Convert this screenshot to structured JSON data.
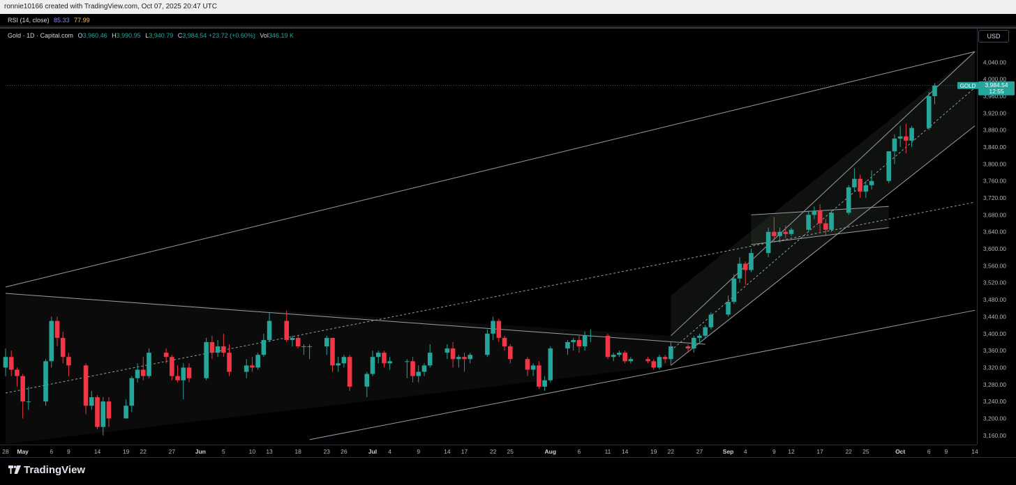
{
  "header": {
    "attribution": "ronnie10166 created with TradingView.com, Oct 07, 2025 20:47 UTC"
  },
  "rsi": {
    "label": "RSI (14, close)",
    "value1": "85.33",
    "value2": "77.99"
  },
  "info": {
    "symbol": "Gold · 1D · Capital.com",
    "open_label": "O",
    "open": "3,960.46",
    "high_label": "H",
    "high": "3,990.95",
    "low_label": "L",
    "low": "3,940.79",
    "close_label": "C",
    "close": "3,984.54",
    "change": "+23.72 (+0.60%)",
    "vol_label": "Vol",
    "vol": "346.19 K"
  },
  "currency_button": "USD",
  "price_tag": {
    "name": "GOLD",
    "price": "3,984.54",
    "countdown": "12:55"
  },
  "footer": {
    "brand": "TradingView"
  },
  "colors": {
    "up": "#26a69a",
    "down": "#f23645",
    "line": "#b2b5be",
    "bg": "#000000"
  },
  "chart_data": {
    "type": "candlestick",
    "x_label_dates": [
      "2025-04-28",
      "2025-05-01",
      "2025-05-06",
      "2025-05-09",
      "2025-05-14",
      "2025-05-19",
      "2025-05-22",
      "2025-05-27",
      "2025-06-01",
      "2025-06-05",
      "2025-06-10",
      "2025-06-13",
      "2025-06-18",
      "2025-06-23",
      "2025-06-26",
      "2025-07-01",
      "2025-07-04",
      "2025-07-09",
      "2025-07-14",
      "2025-07-17",
      "2025-07-22",
      "2025-07-25",
      "2025-08-01",
      "2025-08-06",
      "2025-08-11",
      "2025-08-14",
      "2025-08-19",
      "2025-08-22",
      "2025-08-27",
      "2025-09-01",
      "2025-09-04",
      "2025-09-09",
      "2025-09-12",
      "2025-09-17",
      "2025-09-22",
      "2025-09-25",
      "2025-10-01",
      "2025-10-06",
      "2025-10-09",
      "2025-10-14"
    ],
    "x_labels": [
      "28",
      "May",
      "6",
      "9",
      "14",
      "19",
      "22",
      "27",
      "Jun",
      "5",
      "10",
      "13",
      "18",
      "23",
      "26",
      "Jul",
      "4",
      "9",
      "14",
      "17",
      "22",
      "25",
      "Aug",
      "6",
      "11",
      "14",
      "19",
      "22",
      "27",
      "Sep",
      "4",
      "9",
      "12",
      "17",
      "22",
      "25",
      "Oct",
      "6",
      "9",
      "14"
    ],
    "y_ticks": [
      3160,
      3200,
      3240,
      3280,
      3320,
      3360,
      3400,
      3440,
      3480,
      3520,
      3560,
      3600,
      3640,
      3680,
      3720,
      3760,
      3800,
      3840,
      3880,
      3920,
      3960,
      4000,
      4040
    ],
    "y_tick_labels": [
      "3,160.00",
      "3,200.00",
      "3,240.00",
      "3,280.00",
      "3,320.00",
      "3,360.00",
      "3,400.00",
      "3,440.00",
      "3,480.00",
      "3,520.00",
      "3,560.00",
      "3,600.00",
      "3,640.00",
      "3,680.00",
      "3,720.00",
      "3,760.00",
      "3,800.00",
      "3,840.00",
      "3,880.00",
      "3,920.00",
      "3,960.00",
      "4,000.00",
      "4,040.00"
    ],
    "ylim": [
      3140,
      4075
    ],
    "xlim": [
      "2025-04-28",
      "2025-10-14"
    ],
    "candles": [
      {
        "d": "2025-04-28",
        "o": 3320,
        "h": 3365,
        "l": 3300,
        "c": 3345
      },
      {
        "d": "2025-04-29",
        "o": 3345,
        "h": 3360,
        "l": 3300,
        "c": 3315
      },
      {
        "d": "2025-04-30",
        "o": 3315,
        "h": 3320,
        "l": 3275,
        "c": 3300
      },
      {
        "d": "2025-05-01",
        "o": 3300,
        "h": 3305,
        "l": 3200,
        "c": 3240
      },
      {
        "d": "2025-05-02",
        "o": 3240,
        "h": 3275,
        "l": 3220,
        "c": 3240
      },
      {
        "d": "2025-05-05",
        "o": 3240,
        "h": 3340,
        "l": 3230,
        "c": 3335
      },
      {
        "d": "2025-05-06",
        "o": 3335,
        "h": 3440,
        "l": 3320,
        "c": 3430
      },
      {
        "d": "2025-05-07",
        "o": 3430,
        "h": 3440,
        "l": 3370,
        "c": 3390
      },
      {
        "d": "2025-05-08",
        "o": 3390,
        "h": 3405,
        "l": 3330,
        "c": 3345
      },
      {
        "d": "2025-05-09",
        "o": 3345,
        "h": 3355,
        "l": 3300,
        "c": 3325
      },
      {
        "d": "2025-05-12",
        "o": 3325,
        "h": 3330,
        "l": 3210,
        "c": 3230
      },
      {
        "d": "2025-05-13",
        "o": 3230,
        "h": 3265,
        "l": 3220,
        "c": 3250
      },
      {
        "d": "2025-05-14",
        "o": 3250,
        "h": 3255,
        "l": 3175,
        "c": 3180
      },
      {
        "d": "2025-05-15",
        "o": 3180,
        "h": 3250,
        "l": 3160,
        "c": 3240
      },
      {
        "d": "2025-05-16",
        "o": 3240,
        "h": 3250,
        "l": 3180,
        "c": 3200
      },
      {
        "d": "2025-05-19",
        "o": 3200,
        "h": 3245,
        "l": 3200,
        "c": 3230
      },
      {
        "d": "2025-05-20",
        "o": 3230,
        "h": 3300,
        "l": 3215,
        "c": 3295
      },
      {
        "d": "2025-05-21",
        "o": 3295,
        "h": 3330,
        "l": 3285,
        "c": 3315
      },
      {
        "d": "2025-05-22",
        "o": 3315,
        "h": 3345,
        "l": 3290,
        "c": 3300
      },
      {
        "d": "2025-05-23",
        "o": 3300,
        "h": 3365,
        "l": 3295,
        "c": 3355
      },
      {
        "d": "2025-05-26",
        "o": 3355,
        "h": 3365,
        "l": 3330,
        "c": 3345
      },
      {
        "d": "2025-05-27",
        "o": 3345,
        "h": 3350,
        "l": 3290,
        "c": 3300
      },
      {
        "d": "2025-05-28",
        "o": 3300,
        "h": 3325,
        "l": 3285,
        "c": 3290
      },
      {
        "d": "2025-05-29",
        "o": 3290,
        "h": 3330,
        "l": 3245,
        "c": 3320
      },
      {
        "d": "2025-05-30",
        "o": 3320,
        "h": 3330,
        "l": 3285,
        "c": 3295
      },
      {
        "d": "2025-06-02",
        "o": 3295,
        "h": 3390,
        "l": 3290,
        "c": 3380
      },
      {
        "d": "2025-06-03",
        "o": 3380,
        "h": 3395,
        "l": 3340,
        "c": 3355
      },
      {
        "d": "2025-06-04",
        "o": 3355,
        "h": 3385,
        "l": 3345,
        "c": 3370
      },
      {
        "d": "2025-06-05",
        "o": 3370,
        "h": 3400,
        "l": 3345,
        "c": 3355
      },
      {
        "d": "2025-06-06",
        "o": 3355,
        "h": 3375,
        "l": 3300,
        "c": 3310
      },
      {
        "d": "2025-06-09",
        "o": 3310,
        "h": 3340,
        "l": 3295,
        "c": 3325
      },
      {
        "d": "2025-06-10",
        "o": 3325,
        "h": 3345,
        "l": 3310,
        "c": 3320
      },
      {
        "d": "2025-06-11",
        "o": 3320,
        "h": 3355,
        "l": 3315,
        "c": 3350
      },
      {
        "d": "2025-06-12",
        "o": 3350,
        "h": 3400,
        "l": 3345,
        "c": 3385
      },
      {
        "d": "2025-06-13",
        "o": 3385,
        "h": 3450,
        "l": 3380,
        "c": 3430
      },
      {
        "d": "2025-06-16",
        "o": 3430,
        "h": 3455,
        "l": 3380,
        "c": 3385
      },
      {
        "d": "2025-06-17",
        "o": 3385,
        "h": 3395,
        "l": 3370,
        "c": 3390
      },
      {
        "d": "2025-06-18",
        "o": 3390,
        "h": 3395,
        "l": 3365,
        "c": 3370
      },
      {
        "d": "2025-06-19",
        "o": 3370,
        "h": 3375,
        "l": 3350,
        "c": 3370
      },
      {
        "d": "2025-06-20",
        "o": 3370,
        "h": 3375,
        "l": 3340,
        "c": 3370
      },
      {
        "d": "2025-06-23",
        "o": 3370,
        "h": 3395,
        "l": 3350,
        "c": 3390
      },
      {
        "d": "2025-06-24",
        "o": 3390,
        "h": 3390,
        "l": 3310,
        "c": 3325
      },
      {
        "d": "2025-06-25",
        "o": 3325,
        "h": 3345,
        "l": 3310,
        "c": 3330
      },
      {
        "d": "2025-06-26",
        "o": 3330,
        "h": 3350,
        "l": 3320,
        "c": 3345
      },
      {
        "d": "2025-06-27",
        "o": 3345,
        "h": 3350,
        "l": 3265,
        "c": 3275
      },
      {
        "d": "2025-06-30",
        "o": 3275,
        "h": 3310,
        "l": 3250,
        "c": 3305
      },
      {
        "d": "2025-07-01",
        "o": 3305,
        "h": 3360,
        "l": 3300,
        "c": 3345
      },
      {
        "d": "2025-07-02",
        "o": 3345,
        "h": 3360,
        "l": 3330,
        "c": 3355
      },
      {
        "d": "2025-07-03",
        "o": 3355,
        "h": 3360,
        "l": 3320,
        "c": 3330
      },
      {
        "d": "2025-07-04",
        "o": 3330,
        "h": 3345,
        "l": 3315,
        "c": 3335
      },
      {
        "d": "2025-07-07",
        "o": 3335,
        "h": 3340,
        "l": 3295,
        "c": 3335
      },
      {
        "d": "2025-07-08",
        "o": 3335,
        "h": 3345,
        "l": 3285,
        "c": 3300
      },
      {
        "d": "2025-07-09",
        "o": 3300,
        "h": 3325,
        "l": 3285,
        "c": 3310
      },
      {
        "d": "2025-07-10",
        "o": 3310,
        "h": 3330,
        "l": 3300,
        "c": 3325
      },
      {
        "d": "2025-07-11",
        "o": 3325,
        "h": 3375,
        "l": 3320,
        "c": 3355
      },
      {
        "d": "2025-07-14",
        "o": 3355,
        "h": 3375,
        "l": 3340,
        "c": 3365
      },
      {
        "d": "2025-07-15",
        "o": 3365,
        "h": 3380,
        "l": 3320,
        "c": 3340
      },
      {
        "d": "2025-07-16",
        "o": 3340,
        "h": 3350,
        "l": 3320,
        "c": 3345
      },
      {
        "d": "2025-07-17",
        "o": 3345,
        "h": 3355,
        "l": 3310,
        "c": 3340
      },
      {
        "d": "2025-07-18",
        "o": 3340,
        "h": 3355,
        "l": 3330,
        "c": 3350
      },
      {
        "d": "2025-07-21",
        "o": 3350,
        "h": 3410,
        "l": 3345,
        "c": 3400
      },
      {
        "d": "2025-07-22",
        "o": 3400,
        "h": 3440,
        "l": 3385,
        "c": 3430
      },
      {
        "d": "2025-07-23",
        "o": 3430,
        "h": 3435,
        "l": 3380,
        "c": 3390
      },
      {
        "d": "2025-07-24",
        "o": 3390,
        "h": 3395,
        "l": 3360,
        "c": 3370
      },
      {
        "d": "2025-07-25",
        "o": 3370,
        "h": 3375,
        "l": 3330,
        "c": 3340
      },
      {
        "d": "2025-07-28",
        "o": 3340,
        "h": 3345,
        "l": 3300,
        "c": 3315
      },
      {
        "d": "2025-07-29",
        "o": 3315,
        "h": 3330,
        "l": 3300,
        "c": 3325
      },
      {
        "d": "2025-07-30",
        "o": 3325,
        "h": 3335,
        "l": 3270,
        "c": 3275
      },
      {
        "d": "2025-07-31",
        "o": 3275,
        "h": 3300,
        "l": 3265,
        "c": 3290
      },
      {
        "d": "2025-08-01",
        "o": 3290,
        "h": 3370,
        "l": 3285,
        "c": 3365
      },
      {
        "d": "2025-08-04",
        "o": 3365,
        "h": 3385,
        "l": 3350,
        "c": 3380
      },
      {
        "d": "2025-08-05",
        "o": 3380,
        "h": 3390,
        "l": 3360,
        "c": 3385
      },
      {
        "d": "2025-08-06",
        "o": 3385,
        "h": 3395,
        "l": 3355,
        "c": 3370
      },
      {
        "d": "2025-08-07",
        "o": 3370,
        "h": 3405,
        "l": 3360,
        "c": 3395
      },
      {
        "d": "2025-08-08",
        "o": 3395,
        "h": 3410,
        "l": 3380,
        "c": 3395
      },
      {
        "d": "2025-08-11",
        "o": 3395,
        "h": 3400,
        "l": 3340,
        "c": 3345
      },
      {
        "d": "2025-08-12",
        "o": 3345,
        "h": 3355,
        "l": 3335,
        "c": 3350
      },
      {
        "d": "2025-08-13",
        "o": 3350,
        "h": 3360,
        "l": 3345,
        "c": 3355
      },
      {
        "d": "2025-08-14",
        "o": 3355,
        "h": 3360,
        "l": 3330,
        "c": 3335
      },
      {
        "d": "2025-08-15",
        "o": 3335,
        "h": 3345,
        "l": 3330,
        "c": 3340
      },
      {
        "d": "2025-08-18",
        "o": 3340,
        "h": 3345,
        "l": 3330,
        "c": 3335
      },
      {
        "d": "2025-08-19",
        "o": 3335,
        "h": 3340,
        "l": 3315,
        "c": 3320
      },
      {
        "d": "2025-08-20",
        "o": 3320,
        "h": 3350,
        "l": 3315,
        "c": 3345
      },
      {
        "d": "2025-08-21",
        "o": 3345,
        "h": 3350,
        "l": 3330,
        "c": 3340
      },
      {
        "d": "2025-08-22",
        "o": 3340,
        "h": 3380,
        "l": 3325,
        "c": 3370
      },
      {
        "d": "2025-08-25",
        "o": 3370,
        "h": 3375,
        "l": 3355,
        "c": 3365
      },
      {
        "d": "2025-08-26",
        "o": 3365,
        "h": 3395,
        "l": 3355,
        "c": 3390
      },
      {
        "d": "2025-08-27",
        "o": 3390,
        "h": 3400,
        "l": 3380,
        "c": 3395
      },
      {
        "d": "2025-08-28",
        "o": 3395,
        "h": 3420,
        "l": 3390,
        "c": 3415
      },
      {
        "d": "2025-08-29",
        "o": 3415,
        "h": 3450,
        "l": 3410,
        "c": 3445
      },
      {
        "d": "2025-09-01",
        "o": 3445,
        "h": 3490,
        "l": 3440,
        "c": 3475
      },
      {
        "d": "2025-09-02",
        "o": 3475,
        "h": 3540,
        "l": 3470,
        "c": 3530
      },
      {
        "d": "2025-09-03",
        "o": 3530,
        "h": 3580,
        "l": 3520,
        "c": 3565
      },
      {
        "d": "2025-09-04",
        "o": 3565,
        "h": 3570,
        "l": 3515,
        "c": 3550
      },
      {
        "d": "2025-09-05",
        "o": 3550,
        "h": 3600,
        "l": 3545,
        "c": 3590
      },
      {
        "d": "2025-09-08",
        "o": 3590,
        "h": 3650,
        "l": 3580,
        "c": 3640
      },
      {
        "d": "2025-09-09",
        "o": 3640,
        "h": 3675,
        "l": 3615,
        "c": 3630
      },
      {
        "d": "2025-09-10",
        "o": 3630,
        "h": 3650,
        "l": 3615,
        "c": 3640
      },
      {
        "d": "2025-09-11",
        "o": 3640,
        "h": 3655,
        "l": 3625,
        "c": 3635
      },
      {
        "d": "2025-09-12",
        "o": 3635,
        "h": 3650,
        "l": 3630,
        "c": 3645
      },
      {
        "d": "2025-09-15",
        "o": 3645,
        "h": 3690,
        "l": 3640,
        "c": 3680
      },
      {
        "d": "2025-09-16",
        "o": 3680,
        "h": 3700,
        "l": 3670,
        "c": 3690
      },
      {
        "d": "2025-09-17",
        "o": 3690,
        "h": 3705,
        "l": 3640,
        "c": 3660
      },
      {
        "d": "2025-09-18",
        "o": 3660,
        "h": 3670,
        "l": 3630,
        "c": 3645
      },
      {
        "d": "2025-09-19",
        "o": 3645,
        "h": 3690,
        "l": 3640,
        "c": 3685
      },
      {
        "d": "2025-09-22",
        "o": 3685,
        "h": 3750,
        "l": 3680,
        "c": 3745
      },
      {
        "d": "2025-09-23",
        "o": 3745,
        "h": 3790,
        "l": 3735,
        "c": 3765
      },
      {
        "d": "2025-09-24",
        "o": 3765,
        "h": 3775,
        "l": 3720,
        "c": 3735
      },
      {
        "d": "2025-09-25",
        "o": 3735,
        "h": 3760,
        "l": 3720,
        "c": 3750
      },
      {
        "d": "2025-09-26",
        "o": 3750,
        "h": 3785,
        "l": 3740,
        "c": 3760
      },
      {
        "d": "2025-09-29",
        "o": 3760,
        "h": 3830,
        "l": 3755,
        "c": 3830
      },
      {
        "d": "2025-09-30",
        "o": 3830,
        "h": 3870,
        "l": 3800,
        "c": 3860
      },
      {
        "d": "2025-10-01",
        "o": 3860,
        "h": 3890,
        "l": 3840,
        "c": 3865
      },
      {
        "d": "2025-10-02",
        "o": 3865,
        "h": 3895,
        "l": 3825,
        "c": 3855
      },
      {
        "d": "2025-10-03",
        "o": 3855,
        "h": 3890,
        "l": 3840,
        "c": 3885
      },
      {
        "d": "2025-10-06",
        "o": 3885,
        "h": 3970,
        "l": 3880,
        "c": 3960
      },
      {
        "d": "2025-10-07",
        "o": 3960,
        "h": 3991,
        "l": 3941,
        "c": 3985
      }
    ],
    "drawings": {
      "lines": [
        {
          "style": "solid",
          "from": [
            "2025-04-28",
            3510
          ],
          "to": [
            "2025-10-14",
            4065
          ]
        },
        {
          "style": "solid",
          "from": [
            "2025-04-28",
            3495
          ],
          "to": [
            "2025-08-28",
            3375
          ]
        },
        {
          "style": "solid",
          "from": [
            "2025-06-20",
            3150
          ],
          "to": [
            "2025-10-14",
            3455
          ]
        },
        {
          "style": "dashed",
          "from": [
            "2025-04-28",
            3260
          ],
          "to": [
            "2025-10-14",
            3710
          ]
        },
        {
          "style": "solid",
          "from": [
            "2025-08-22",
            3395
          ],
          "to": [
            "2025-10-14",
            4065
          ]
        },
        {
          "style": "solid",
          "from": [
            "2025-08-22",
            3325
          ],
          "to": [
            "2025-10-14",
            3890
          ]
        },
        {
          "style": "dashed",
          "from": [
            "2025-08-22",
            3360
          ],
          "to": [
            "2025-10-14",
            3980
          ]
        },
        {
          "style": "solid",
          "from": [
            "2025-09-05",
            3680
          ],
          "to": [
            "2025-09-29",
            3700
          ]
        },
        {
          "style": "solid",
          "from": [
            "2025-09-05",
            3610
          ],
          "to": [
            "2025-09-29",
            3650
          ]
        },
        {
          "style": "dotted",
          "from": [
            "2025-04-28",
            3985
          ],
          "to": [
            "2025-10-14",
            3985
          ]
        }
      ],
      "zones": [
        {
          "from": "2025-04-28",
          "to": "2025-08-22",
          "top_start": 3495,
          "top_end": 3395,
          "bottom_start": 3140,
          "bottom_end": 3325
        },
        {
          "from": "2025-08-22",
          "to": "2025-10-14",
          "top_start": 3490,
          "top_end": 4065,
          "bottom_start": 3325,
          "bottom_end": 3890
        },
        {
          "from": "2025-09-05",
          "to": "2025-09-29",
          "top_start": 3680,
          "top_end": 3700,
          "bottom_start": 3610,
          "bottom_end": 3650
        }
      ]
    }
  }
}
